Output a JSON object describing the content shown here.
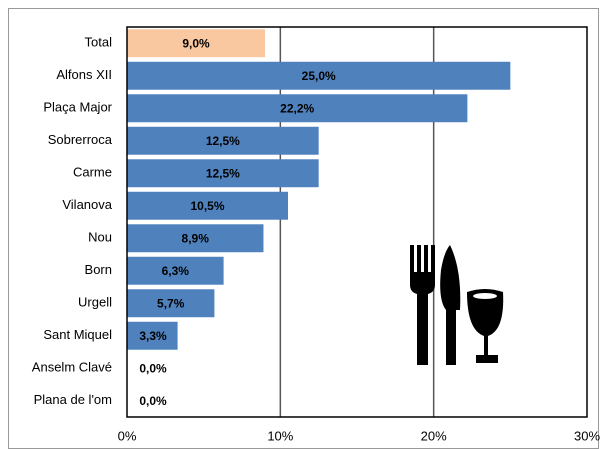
{
  "chart_data": {
    "type": "bar",
    "orientation": "horizontal",
    "categories": [
      "Total",
      "Alfons XII",
      "Plaça Major",
      "Sobrerroca",
      "Carme",
      "Vilanova",
      "Nou",
      "Born",
      "Urgell",
      "Sant Miquel",
      "Anselm Clavé",
      "Plana de l'om"
    ],
    "values": [
      9.0,
      25.0,
      22.2,
      12.5,
      12.5,
      10.5,
      8.9,
      6.3,
      5.7,
      3.3,
      0.0,
      0.0
    ],
    "value_labels": [
      "9,0%",
      "25,0%",
      "22,2%",
      "12,5%",
      "12,5%",
      "10,5%",
      "8,9%",
      "6,3%",
      "5,7%",
      "3,3%",
      "0,0%",
      "0,0%"
    ],
    "colors": [
      "#fac8a0",
      "#4f81bd",
      "#4f81bd",
      "#4f81bd",
      "#4f81bd",
      "#4f81bd",
      "#4f81bd",
      "#4f81bd",
      "#4f81bd",
      "#4f81bd",
      "#4f81bd",
      "#4f81bd"
    ],
    "xlim": [
      0,
      30
    ],
    "xticks": [
      {
        "value": 0,
        "label": "0%"
      },
      {
        "value": 10,
        "label": "10%"
      },
      {
        "value": 20,
        "label": "20%"
      },
      {
        "value": 30,
        "label": "30%"
      }
    ],
    "grid": true
  }
}
